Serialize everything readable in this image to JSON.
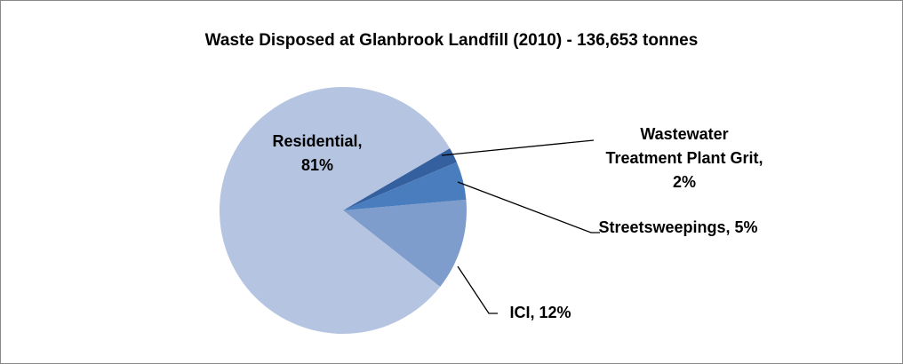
{
  "chart_data": {
    "type": "pie",
    "title": "Waste Disposed at Glanbrook Landfill (2010) - 136,653 tonnes",
    "categories": [
      "ICI,",
      "Residential,",
      "Wastewater Treatment Plant Grit,",
      "Streetsweepings,"
    ],
    "values": [
      12,
      81,
      2,
      5
    ],
    "value_labels": [
      "12%",
      "81%",
      "2%",
      "5%"
    ],
    "colors": [
      "#7f9dcc",
      "#b5c4e0",
      "#35609f",
      "#4a7dbd"
    ]
  }
}
